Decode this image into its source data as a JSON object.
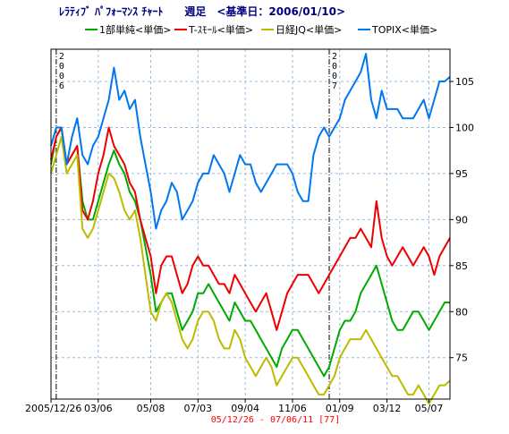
{
  "chart_data": {
    "type": "line",
    "title": "ﾚﾗﾃｨﾌﾞ ﾊﾟﾌｫｰﾏﾝｽ ﾁｬｰﾄ　　週足　<基準日：2006/01/10>",
    "range_label": "05/12/26 - 07/06/11  [77]",
    "y_ticks": [
      75,
      80,
      85,
      90,
      95,
      100,
      105
    ],
    "ylim": [
      70.5,
      108.5
    ],
    "x_count": 77,
    "x_tick_labels": [
      {
        "i": 0,
        "label": "2005/12/26"
      },
      {
        "i": 9,
        "label": "03/06"
      },
      {
        "i": 19,
        "label": "05/08"
      },
      {
        "i": 28,
        "label": "07/03"
      },
      {
        "i": 37,
        "label": "09/04"
      },
      {
        "i": 46,
        "label": "11/06"
      },
      {
        "i": 55,
        "label": "01/09"
      },
      {
        "i": 64,
        "label": "03/12"
      },
      {
        "i": 72,
        "label": "05/07"
      }
    ],
    "year_markers": [
      {
        "i": 1,
        "label": "2006"
      },
      {
        "i": 53,
        "label": "2007"
      }
    ],
    "grid": true,
    "legend_position": "top",
    "series": [
      {
        "name": "1部単純<単価>",
        "color": "#00aa00",
        "values": [
          96,
          99,
          100,
          96,
          97,
          98,
          92,
          90,
          90,
          92,
          94,
          96,
          97.5,
          96,
          95,
          93,
          92,
          90,
          87,
          84,
          80,
          81,
          82,
          82,
          80,
          78,
          79,
          80,
          82,
          82,
          83,
          82,
          81,
          80,
          79,
          81,
          80,
          79,
          79,
          78,
          77,
          76,
          75,
          74,
          76,
          77,
          78,
          78,
          77,
          76,
          75,
          74,
          73,
          74,
          76,
          78,
          79,
          79,
          80,
          82,
          83,
          84,
          85,
          83,
          81,
          79,
          78,
          78,
          79,
          80,
          80,
          79,
          78,
          79,
          80,
          81,
          81
        ]
      },
      {
        "name": "T-ｽﾓｰﾙ<単価>",
        "color": "#ee0000",
        "values": [
          96.5,
          99,
          100,
          96,
          97,
          98,
          91,
          90,
          92,
          95,
          97,
          100,
          98,
          97,
          96,
          94,
          93,
          90,
          88,
          86,
          82,
          85,
          86,
          86,
          84,
          82,
          83,
          85,
          86,
          85,
          85,
          84,
          83,
          83,
          82,
          84,
          83,
          82,
          81,
          80,
          81,
          82,
          80,
          78,
          80,
          82,
          83,
          84,
          84,
          84,
          83,
          82,
          83,
          84,
          85,
          86,
          87,
          88,
          88,
          89,
          88,
          87,
          92,
          88,
          86,
          85,
          86,
          87,
          86,
          85,
          86,
          87,
          86,
          84,
          86,
          87,
          88
        ]
      },
      {
        "name": "日経JQ<単価>",
        "color": "#bbbb00",
        "values": [
          95,
          97,
          99,
          95,
          96,
          97,
          89,
          88,
          89,
          91,
          93,
          95,
          94.5,
          93,
          91,
          90,
          91,
          88,
          84,
          80,
          79,
          81,
          82,
          81,
          79,
          77,
          76,
          77,
          79,
          80,
          80,
          79,
          77,
          76,
          76,
          78,
          77,
          75,
          74,
          73,
          74,
          75,
          74,
          72,
          73,
          74,
          75,
          75,
          74,
          73,
          72,
          71,
          71,
          72,
          73,
          75,
          76,
          77,
          77,
          77,
          78,
          77,
          76,
          75,
          74,
          73,
          73,
          72,
          71,
          71,
          72,
          71,
          70,
          71,
          72,
          72,
          72.5
        ]
      },
      {
        "name": "TOPIX<単価>",
        "color": "#0077ee",
        "values": [
          98,
          100,
          100,
          96,
          99,
          101,
          97,
          96,
          98,
          99,
          101,
          103,
          106.5,
          103,
          104,
          102,
          103,
          99,
          96,
          93,
          89,
          91,
          92,
          94,
          93,
          90,
          91,
          92,
          94,
          95,
          95,
          97,
          96,
          95,
          93,
          95,
          97,
          96,
          96,
          94,
          93,
          94,
          95,
          96,
          96,
          96,
          95,
          93,
          92,
          92,
          97,
          99,
          100,
          99,
          100,
          101,
          103,
          104,
          105,
          106,
          108,
          103,
          101,
          104,
          102,
          102,
          102,
          101,
          101,
          101,
          102,
          103,
          101,
          103,
          105,
          105,
          105.5
        ]
      }
    ]
  }
}
